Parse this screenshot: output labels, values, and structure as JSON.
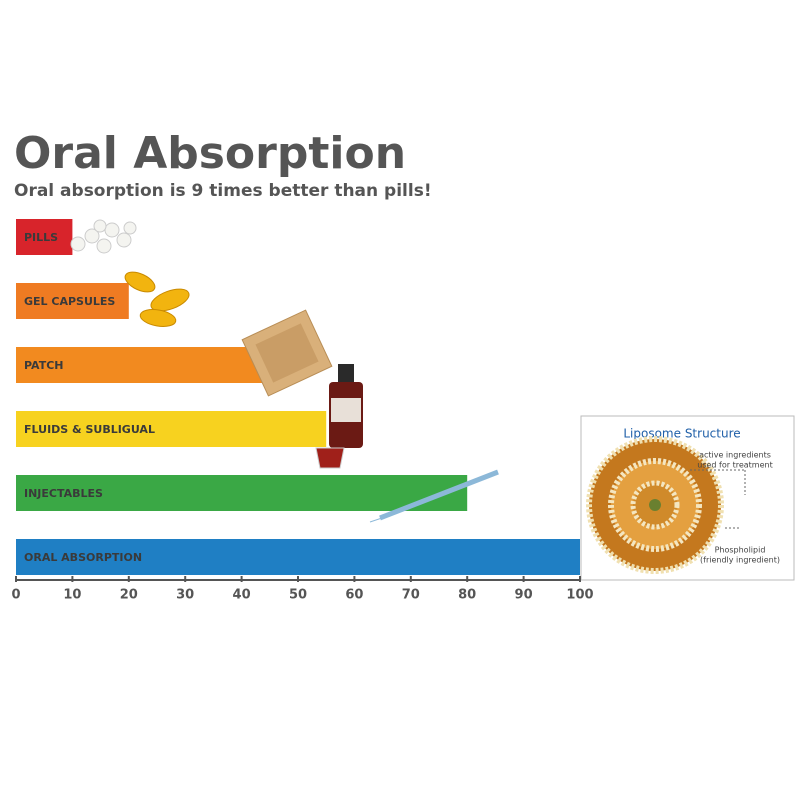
{
  "chart_data": {
    "type": "hbar",
    "title": "Oral Absorption",
    "subtitle": "Oral absorption is 9 times better than pills!",
    "categories": [
      "PILLS",
      "GEL CAPSULES",
      "PATCH",
      "FLUIDS & SUBLIGUAL",
      "INJECTABLES",
      "ORAL ABSORPTION"
    ],
    "values": [
      10,
      20,
      45,
      55,
      80,
      100
    ],
    "colors": [
      "#d8242b",
      "#ef7b22",
      "#f28a1f",
      "#f7d21f",
      "#3aa845",
      "#1f7fc4"
    ],
    "xlim": [
      0,
      100
    ],
    "xticks": [
      0,
      10,
      20,
      30,
      40,
      50,
      60,
      70,
      80,
      90,
      100
    ],
    "inset_title": "Liposome Structure",
    "annotations": [
      "active ingredients",
      "used for treatment",
      "Phospholipid",
      "(friendly ingredient)"
    ]
  }
}
